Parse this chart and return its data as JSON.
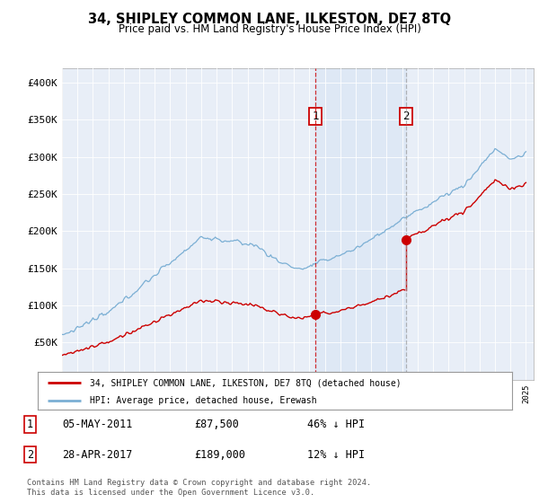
{
  "title": "34, SHIPLEY COMMON LANE, ILKESTON, DE7 8TQ",
  "subtitle": "Price paid vs. HM Land Registry's House Price Index (HPI)",
  "legend_line1": "34, SHIPLEY COMMON LANE, ILKESTON, DE7 8TQ (detached house)",
  "legend_line2": "HPI: Average price, detached house, Erewash",
  "transaction1_date": "05-MAY-2011",
  "transaction1_price": "£87,500",
  "transaction1_hpi": "46% ↓ HPI",
  "transaction2_date": "28-APR-2017",
  "transaction2_price": "£189,000",
  "transaction2_hpi": "12% ↓ HPI",
  "footer": "Contains HM Land Registry data © Crown copyright and database right 2024.\nThis data is licensed under the Open Government Licence v3.0.",
  "hpi_color": "#7bafd4",
  "price_color": "#cc0000",
  "marker_color": "#cc0000",
  "vline1_color": "#cc0000",
  "vline2_color": "#999999",
  "shade_color": "#d6e4f5",
  "background_color": "#e8eef7",
  "ylim_min": 0,
  "ylim_max": 420000,
  "t_buy1": 2011.375,
  "t_buy2": 2017.25,
  "price1": 87500,
  "price2": 189000
}
